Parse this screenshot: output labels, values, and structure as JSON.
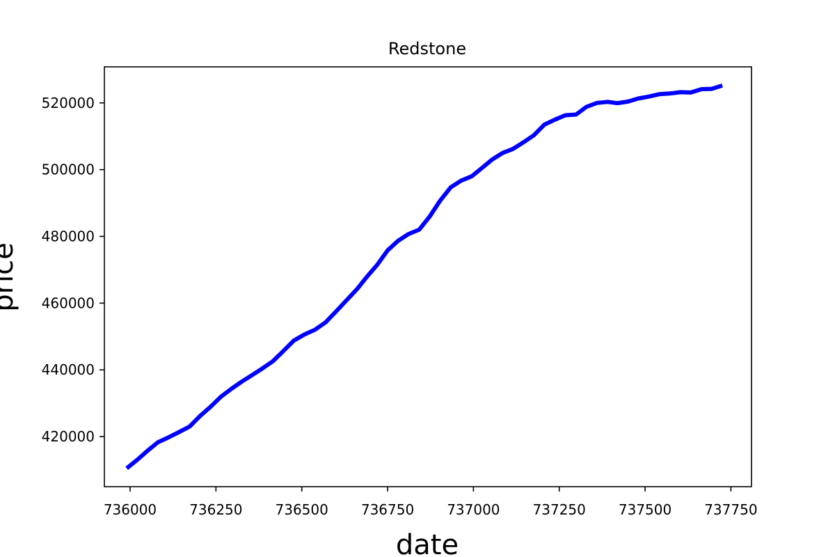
{
  "chart_data": {
    "type": "line",
    "title": "Redstone",
    "xlabel": "date",
    "ylabel": "price",
    "xlim": [
      735925,
      737810
    ],
    "ylim": [
      405000,
      530800
    ],
    "xticks": [
      736000,
      736250,
      736500,
      736750,
      737000,
      737250,
      737500,
      737750
    ],
    "yticks": [
      420000,
      440000,
      460000,
      480000,
      500000,
      520000
    ],
    "grid": false,
    "series": [
      {
        "name": "Redstone",
        "color": "#0000ff",
        "x": [
          735990,
          736020,
          736051,
          736081,
          736112,
          736143,
          736173,
          736204,
          736234,
          736265,
          736296,
          736324,
          736355,
          736385,
          736416,
          736446,
          736477,
          736508,
          736538,
          736569,
          736599,
          736630,
          736661,
          736689,
          736720,
          736750,
          736781,
          736811,
          736842,
          736873,
          736903,
          736934,
          736964,
          736995,
          737026,
          737054,
          737085,
          737115,
          737146,
          737176,
          737207,
          737238,
          737268,
          737299,
          737329,
          737360,
          737391,
          737419,
          737450,
          737480,
          737511,
          737541,
          737572,
          737603,
          737633,
          737664,
          737694,
          737725
        ],
        "y": [
          410500,
          413000,
          415800,
          418300,
          419800,
          421400,
          423000,
          426200,
          428900,
          432000,
          434400,
          436400,
          438400,
          440400,
          442600,
          445600,
          448800,
          450600,
          452000,
          454200,
          457400,
          460800,
          464200,
          467800,
          471500,
          475800,
          478700,
          480700,
          482000,
          486000,
          490700,
          494700,
          496700,
          498000,
          500600,
          503000,
          505000,
          506200,
          508200,
          510300,
          513500,
          515000,
          516300,
          516500,
          518800,
          520000,
          520300,
          519900,
          520400,
          521300,
          521900,
          522600,
          522800,
          523200,
          523100,
          524100,
          524200,
          525200
        ]
      }
    ]
  }
}
